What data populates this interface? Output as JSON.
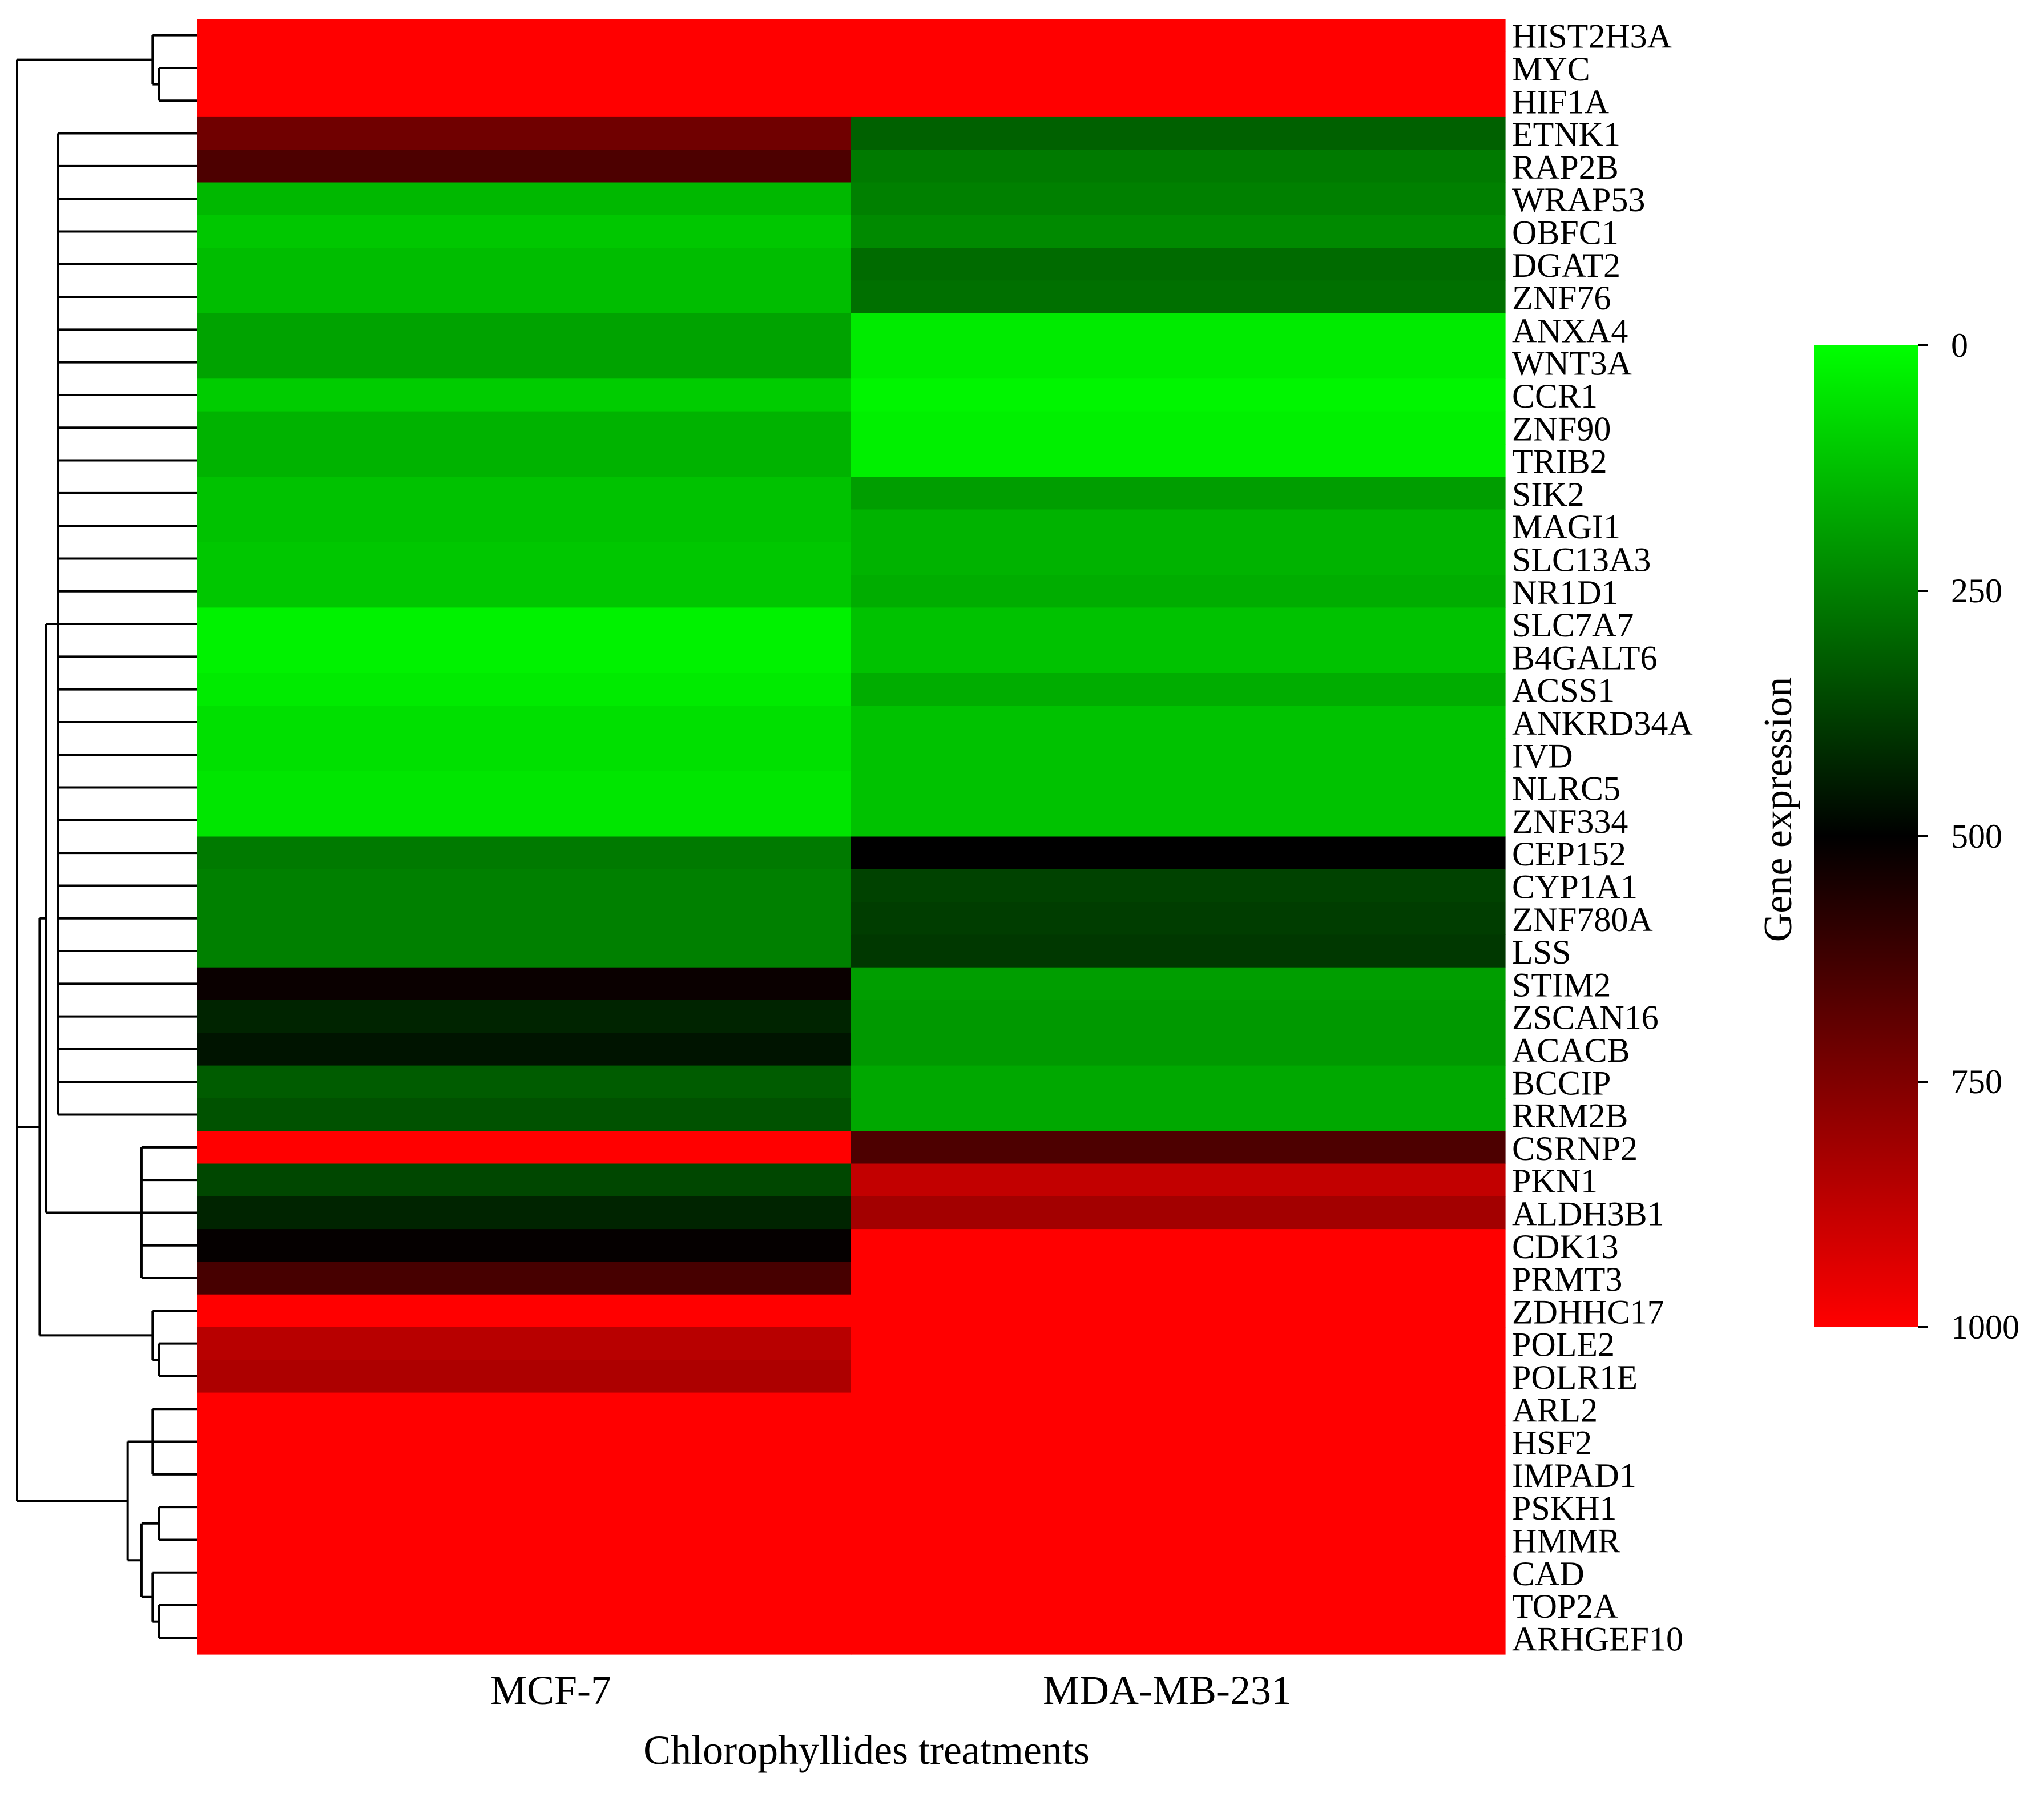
{
  "chart_data": {
    "type": "heatmap",
    "title": "",
    "xlabel": "Chlorophyllides treatments",
    "columns": [
      "MCF-7",
      "MDA-MB-231"
    ],
    "rows": [
      {
        "gene": "HIST2H3A",
        "values": [
          1000,
          1000
        ]
      },
      {
        "gene": "MYC",
        "values": [
          1000,
          1000
        ]
      },
      {
        "gene": "HIF1A",
        "values": [
          1000,
          1000
        ]
      },
      {
        "gene": "ETNK1",
        "values": [
          720,
          310
        ]
      },
      {
        "gene": "RAP2B",
        "values": [
          650,
          260
        ]
      },
      {
        "gene": "WRAP53",
        "values": [
          140,
          250
        ]
      },
      {
        "gene": "OBFC1",
        "values": [
          110,
          230
        ]
      },
      {
        "gene": "DGAT2",
        "values": [
          130,
          290
        ]
      },
      {
        "gene": "ZNF76",
        "values": [
          130,
          280
        ]
      },
      {
        "gene": "ANXA4",
        "values": [
          180,
          40
        ]
      },
      {
        "gene": "WNT3A",
        "values": [
          180,
          40
        ]
      },
      {
        "gene": "CCR1",
        "values": [
          100,
          20
        ]
      },
      {
        "gene": "ZNF90",
        "values": [
          150,
          30
        ]
      },
      {
        "gene": "TRIB2",
        "values": [
          150,
          30
        ]
      },
      {
        "gene": "SIK2",
        "values": [
          120,
          190
        ]
      },
      {
        "gene": "MAGI1",
        "values": [
          120,
          150
        ]
      },
      {
        "gene": "SLC13A3",
        "values": [
          110,
          150
        ]
      },
      {
        "gene": "NR1D1",
        "values": [
          110,
          160
        ]
      },
      {
        "gene": "SLC7A7",
        "values": [
          25,
          120
        ]
      },
      {
        "gene": "B4GALT6",
        "values": [
          25,
          120
        ]
      },
      {
        "gene": "ACSS1",
        "values": [
          40,
          160
        ]
      },
      {
        "gene": "ANKRD34A",
        "values": [
          60,
          120
        ]
      },
      {
        "gene": "IVD",
        "values": [
          60,
          120
        ]
      },
      {
        "gene": "NLRC5",
        "values": [
          50,
          120
        ]
      },
      {
        "gene": "ZNF334",
        "values": [
          50,
          120
        ]
      },
      {
        "gene": "CEP152",
        "values": [
          260,
          500
        ]
      },
      {
        "gene": "CYP1A1",
        "values": [
          250,
          370
        ]
      },
      {
        "gene": "ZNF780A",
        "values": [
          250,
          380
        ]
      },
      {
        "gene": "LSS",
        "values": [
          250,
          390
        ]
      },
      {
        "gene": "STIM2",
        "values": [
          520,
          190
        ]
      },
      {
        "gene": "ZSCAN16",
        "values": [
          430,
          200
        ]
      },
      {
        "gene": "ACACB",
        "values": [
          460,
          200
        ]
      },
      {
        "gene": "BCCIP",
        "values": [
          320,
          170
        ]
      },
      {
        "gene": "RRM2B",
        "values": [
          340,
          170
        ]
      },
      {
        "gene": "CSRNP2",
        "values": [
          1000,
          650
        ]
      },
      {
        "gene": "PKN1",
        "values": [
          360,
          880
        ]
      },
      {
        "gene": "ALDH3B1",
        "values": [
          430,
          820
        ]
      },
      {
        "gene": "CDK13",
        "values": [
          510,
          1000
        ]
      },
      {
        "gene": "PRMT3",
        "values": [
          640,
          1000
        ]
      },
      {
        "gene": "ZDHHC17",
        "values": [
          1000,
          1000
        ]
      },
      {
        "gene": "POLE2",
        "values": [
          860,
          1000
        ]
      },
      {
        "gene": "POLR1E",
        "values": [
          840,
          1000
        ]
      },
      {
        "gene": "ARL2",
        "values": [
          1000,
          1000
        ]
      },
      {
        "gene": "HSF2",
        "values": [
          1000,
          1000
        ]
      },
      {
        "gene": "IMPAD1",
        "values": [
          1000,
          1000
        ]
      },
      {
        "gene": "PSKH1",
        "values": [
          1000,
          1000
        ]
      },
      {
        "gene": "HMMR",
        "values": [
          1000,
          1000
        ]
      },
      {
        "gene": "CAD",
        "values": [
          1000,
          1000
        ]
      },
      {
        "gene": "TOP2A",
        "values": [
          1000,
          1000
        ]
      },
      {
        "gene": "ARHGEF10",
        "values": [
          1000,
          1000
        ]
      }
    ],
    "dendrogram": {
      "id": "root",
      "children": [
        {
          "id": "top",
          "children": [
            {
              "id": "leaf-HIST2H3A",
              "row": 0
            },
            {
              "id": "myc-hif",
              "children": [
                {
                  "id": "leaf-MYC",
                  "row": 1
                },
                {
                  "id": "leaf-HIF1A",
                  "row": 2
                }
              ]
            }
          ]
        },
        {
          "id": "main",
          "children": [
            {
              "id": "core",
              "children": [
                {
                  "id": "big-cluster",
                  "children": [
                    {
                      "id": "leaf-ETNK1",
                      "row": 3
                    },
                    {
                      "id": "leaf-RAP2B",
                      "row": 4
                    },
                    {
                      "id": "leaf-WRAP53",
                      "row": 5
                    },
                    {
                      "id": "leaf-OBFC1",
                      "row": 6
                    },
                    {
                      "id": "leaf-DGAT2",
                      "row": 7
                    },
                    {
                      "id": "leaf-ZNF76",
                      "row": 8
                    },
                    {
                      "id": "leaf-ANXA4",
                      "row": 9
                    },
                    {
                      "id": "leaf-WNT3A",
                      "row": 10
                    },
                    {
                      "id": "leaf-CCR1",
                      "row": 11
                    },
                    {
                      "id": "leaf-ZNF90",
                      "row": 12
                    },
                    {
                      "id": "leaf-TRIB2",
                      "row": 13
                    },
                    {
                      "id": "leaf-SIK2",
                      "row": 14
                    },
                    {
                      "id": "leaf-MAGI1",
                      "row": 15
                    },
                    {
                      "id": "leaf-SLC13A3",
                      "row": 16
                    },
                    {
                      "id": "leaf-NR1D1",
                      "row": 17
                    },
                    {
                      "id": "leaf-SLC7A7",
                      "row": 18
                    },
                    {
                      "id": "leaf-B4GALT6",
                      "row": 19
                    },
                    {
                      "id": "leaf-ACSS1",
                      "row": 20
                    },
                    {
                      "id": "leaf-ANKRD34A",
                      "row": 21
                    },
                    {
                      "id": "leaf-IVD",
                      "row": 22
                    },
                    {
                      "id": "leaf-NLRC5",
                      "row": 23
                    },
                    {
                      "id": "leaf-ZNF334",
                      "row": 24
                    },
                    {
                      "id": "leaf-CEP152",
                      "row": 25
                    },
                    {
                      "id": "leaf-CYP1A1",
                      "row": 26
                    },
                    {
                      "id": "leaf-ZNF780A",
                      "row": 27
                    },
                    {
                      "id": "leaf-LSS",
                      "row": 28
                    },
                    {
                      "id": "leaf-STIM2",
                      "row": 29
                    },
                    {
                      "id": "leaf-ZSCAN16",
                      "row": 30
                    },
                    {
                      "id": "leaf-ACACB",
                      "row": 31
                    },
                    {
                      "id": "leaf-BCCIP",
                      "row": 32
                    },
                    {
                      "id": "leaf-RRM2B",
                      "row": 33
                    }
                  ]
                },
                {
                  "id": "small-cluster",
                  "children": [
                    {
                      "id": "leaf-CSRNP2",
                      "row": 34
                    },
                    {
                      "id": "leaf-PKN1",
                      "row": 35
                    },
                    {
                      "id": "leaf-ALDH3B1",
                      "row": 36
                    },
                    {
                      "id": "leaf-CDK13",
                      "row": 37
                    },
                    {
                      "id": "leaf-PRMT3",
                      "row": 38
                    }
                  ]
                }
              ]
            },
            {
              "id": "zpp",
              "children": [
                {
                  "id": "leaf-ZDHHC17",
                  "row": 39
                },
                {
                  "id": "pole-polr",
                  "children": [
                    {
                      "id": "leaf-POLE2",
                      "row": 40
                    },
                    {
                      "id": "leaf-POLR1E",
                      "row": 41
                    }
                  ]
                }
              ]
            }
          ]
        },
        {
          "id": "bottom",
          "children": [
            {
              "id": "arl-group",
              "children": [
                {
                  "id": "leaf-ARL2",
                  "row": 42
                },
                {
                  "id": "leaf-HSF2",
                  "row": 43
                },
                {
                  "id": "leaf-IMPAD1",
                  "row": 44
                }
              ]
            },
            {
              "id": "rest",
              "children": [
                {
                  "id": "pskh-hmmr",
                  "children": [
                    {
                      "id": "leaf-PSKH1",
                      "row": 45
                    },
                    {
                      "id": "leaf-HMMR",
                      "row": 46
                    }
                  ]
                },
                {
                  "id": "cad-group",
                  "children": [
                    {
                      "id": "leaf-CAD",
                      "row": 47
                    },
                    {
                      "id": "top2a-arh",
                      "children": [
                        {
                          "id": "leaf-TOP2A",
                          "row": 48
                        },
                        {
                          "id": "leaf-ARHGEF10",
                          "row": 49
                        }
                      ]
                    }
                  ]
                }
              ]
            }
          ]
        }
      ]
    },
    "colorbar": {
      "label": "Gene expression",
      "range": [
        0,
        1000
      ],
      "ticks": [
        "0",
        "250",
        "500",
        "750",
        "1000"
      ],
      "colors": {
        "low": "#00ff00",
        "mid": "#000000",
        "high": "#ff0000"
      }
    }
  }
}
